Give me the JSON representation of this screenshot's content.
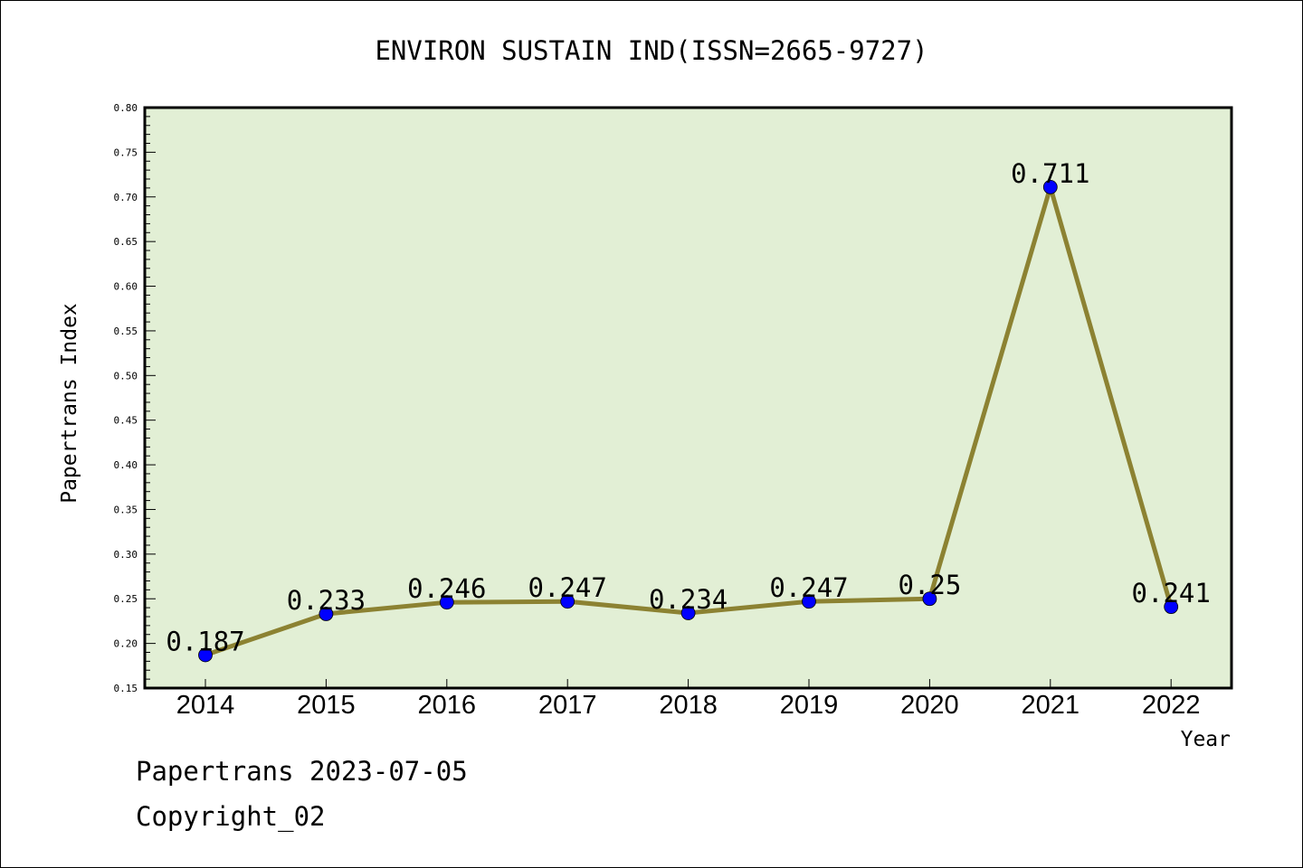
{
  "chart_data": {
    "type": "line",
    "title": "ENVIRON SUSTAIN IND(ISSN=2665-9727)",
    "xlabel": "Year",
    "ylabel": "Papertrans Index",
    "categories": [
      "2014",
      "2015",
      "2016",
      "2017",
      "2018",
      "2019",
      "2020",
      "2021",
      "2022"
    ],
    "values": [
      0.187,
      0.233,
      0.246,
      0.247,
      0.234,
      0.247,
      0.25,
      0.711,
      0.241
    ],
    "data_labels": [
      "0.187",
      "0.233",
      "0.246",
      "0.247",
      "0.234",
      "0.247",
      "0.25",
      "0.711",
      "0.241"
    ],
    "ylim": [
      0.15,
      0.8
    ],
    "yticks": [
      "0.15",
      "0.20",
      "0.25",
      "0.30",
      "0.35",
      "0.40",
      "0.45",
      "0.50",
      "0.55",
      "0.60",
      "0.65",
      "0.70",
      "0.75",
      "0.80"
    ],
    "grid": false,
    "colors": {
      "plot_background": "#e2efd5",
      "line": "#8c8232",
      "marker": "#0000ff"
    }
  },
  "footer": {
    "line1": "Papertrans 2023-07-05",
    "line2": "Copyright_02"
  }
}
